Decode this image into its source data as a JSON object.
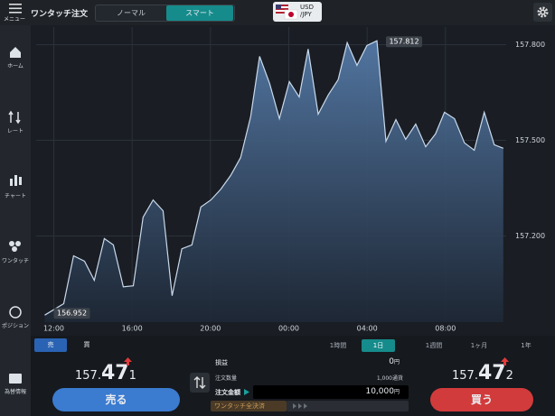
{
  "header": {
    "menu_label": "メニュー",
    "title": "ワンタッチ注文",
    "tabs": [
      "ノーマル",
      "スマート"
    ],
    "pair": [
      "USD",
      "/JPY"
    ]
  },
  "sidebar": [
    "ホーム",
    "レート",
    "チャート",
    "ワンタッチ",
    "ポジション",
    "為替情報"
  ],
  "chart_data": {
    "type": "area",
    "color": "#c9d9ec",
    "fill": "#4f74a0",
    "grid": true,
    "x": [
      -0.46,
      0.51,
      1.01,
      1.57,
      2.07,
      2.58,
      3.04,
      3.55,
      4.06,
      4.56,
      5.07,
      5.58,
      6.04,
      6.54,
      7.05,
      7.51,
      8.02,
      8.53,
      9.03,
      9.54,
      10.05,
      10.51,
      11.02,
      11.52,
      12.03,
      12.53,
      12.99,
      13.5,
      14.01,
      14.52,
      14.98,
      15.48,
      15.99,
      16.5,
      16.96,
      17.47,
      17.97,
      18.48,
      18.99,
      19.49,
      19.95,
      20.46,
      20.97,
      21.47,
      21.98,
      22.49,
      22.95
    ],
    "values": [
      156.952,
      156.988,
      157.138,
      157.121,
      157.061,
      157.192,
      157.172,
      157.041,
      157.044,
      157.259,
      157.313,
      157.279,
      157.013,
      157.16,
      157.172,
      157.291,
      157.313,
      157.347,
      157.39,
      157.446,
      157.574,
      157.763,
      157.678,
      157.568,
      157.684,
      157.636,
      157.786,
      157.582,
      157.642,
      157.69,
      157.806,
      157.735,
      157.797,
      157.812,
      157.497,
      157.565,
      157.503,
      157.551,
      157.48,
      157.52,
      157.588,
      157.568,
      157.492,
      157.469,
      157.588,
      157.486,
      157.475
    ],
    "xlim": [
      -0.9,
      23.1
    ],
    "ylim": [
      156.93,
      157.855
    ],
    "xticks": [
      {
        "value": 0,
        "label": "12:00"
      },
      {
        "value": 4,
        "label": "16:00"
      },
      {
        "value": 8,
        "label": "20:00"
      },
      {
        "value": 12,
        "label": "00:00"
      },
      {
        "value": 16,
        "label": "04:00"
      },
      {
        "value": 20,
        "label": "08:00"
      }
    ],
    "yticks": [
      {
        "value": 157.2,
        "label": "157.200"
      },
      {
        "value": 157.5,
        "label": "157.500"
      },
      {
        "value": 157.8,
        "label": "157.800"
      }
    ]
  },
  "side_toggle": [
    "売",
    "買"
  ],
  "periods": [
    "1時間",
    "1日",
    "1週間",
    "1ヶ月",
    "1年"
  ],
  "bid": {
    "price": [
      "157.",
      "47",
      "1"
    ],
    "button": "売る"
  },
  "ask": {
    "price": [
      "157.",
      "47",
      "2"
    ],
    "button": "買う"
  },
  "order": {
    "pl_label": "損益",
    "pl_value": "0",
    "pl_unit": "円",
    "qty_label": "注文数量",
    "qty_value": "1,000通貨",
    "amount_label": "注文金額",
    "amount_value": "10,000",
    "amount_unit": "円",
    "close_all": "ワンタッチ全決済"
  }
}
